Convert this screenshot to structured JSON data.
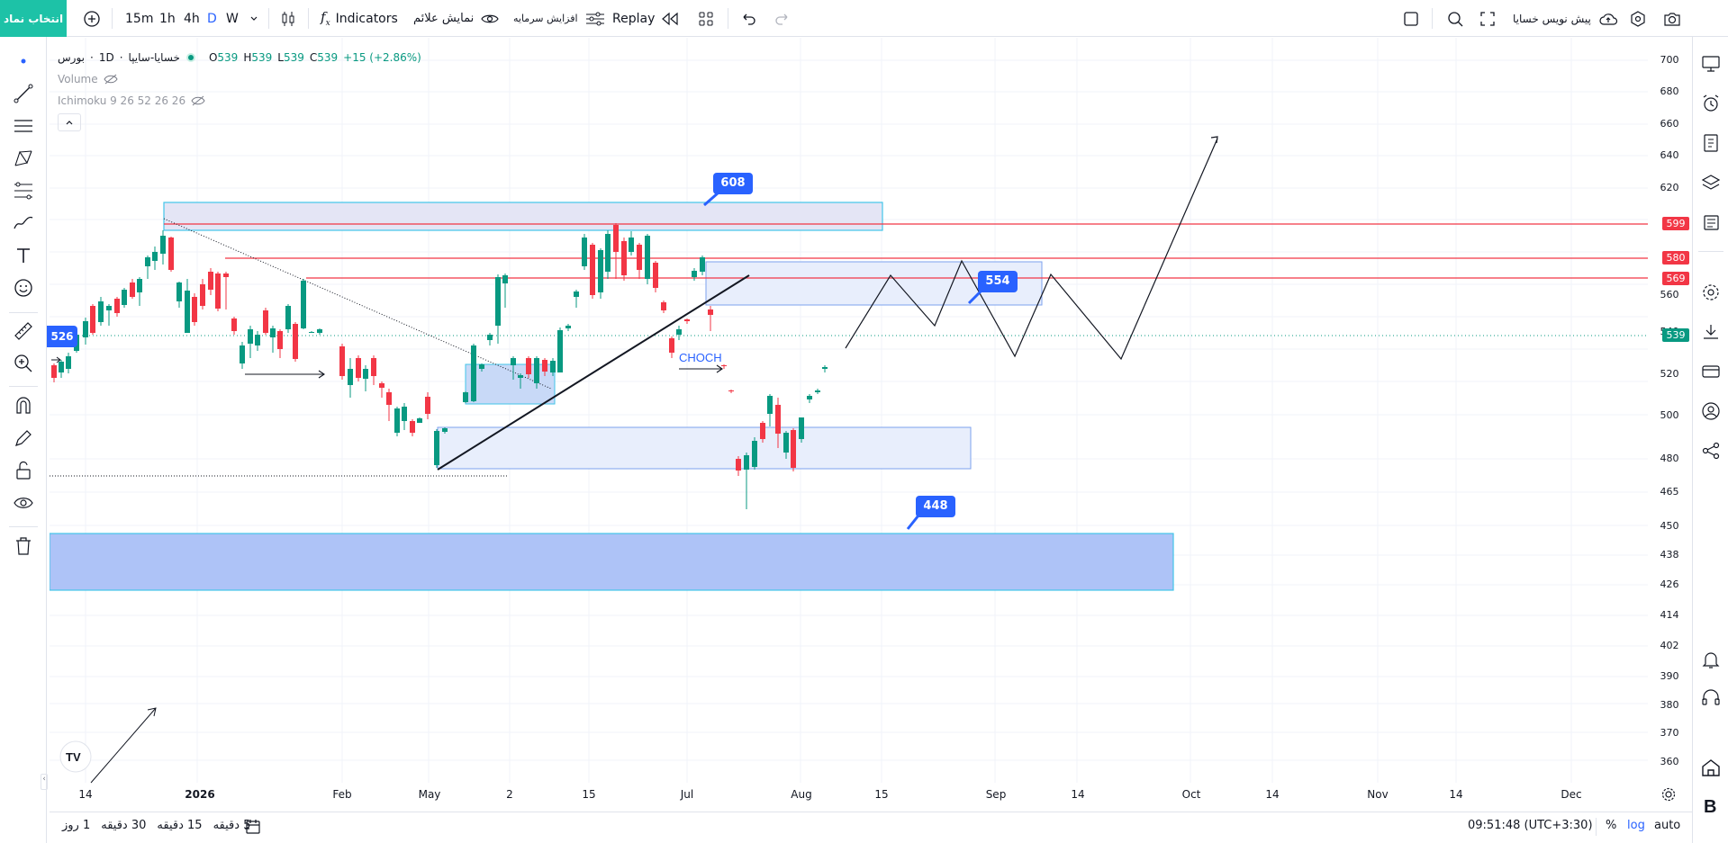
{
  "topbar": {
    "symbol_button": "انتخاب نماد",
    "intervals": [
      "15m",
      "1h",
      "4h",
      "D",
      "W"
    ],
    "active_interval": "D",
    "indicators_label": "Indicators",
    "show_signals_label": "نمایش علائم",
    "capital_increase_label": "افزایش سرمایه",
    "replay_label": "Replay",
    "pre_order_label": "پیش نویس خسایا"
  },
  "legend": {
    "exchange": "بورس",
    "symbol": "خسایا-سایپا",
    "interval": "1D",
    "open_label": "O",
    "open": "539",
    "high_label": "H",
    "high": "539",
    "low_label": "L",
    "low": "539",
    "close_label": "C",
    "close": "539",
    "change": "+15 (+2.86%)",
    "volume_label": "Volume",
    "ichimoku_label": "Ichimoku 9 26 52 26 26"
  },
  "price_axis": {
    "ticks": [
      "700",
      "680",
      "660",
      "640",
      "620",
      "560",
      "540",
      "520",
      "500",
      "480",
      "465",
      "450",
      "438",
      "426",
      "414",
      "402",
      "390",
      "380",
      "370",
      "360"
    ],
    "levels": [
      {
        "value": "599",
        "color": "#f23645"
      },
      {
        "value": "580",
        "color": "#f23645"
      },
      {
        "value": "569",
        "color": "#f23645"
      },
      {
        "value": "539",
        "color": "#089981"
      }
    ]
  },
  "time_axis": {
    "ticks": [
      "14",
      "2026",
      "Feb",
      "May",
      "2",
      "15",
      "Jul",
      "Aug",
      "15",
      "Sep",
      "14",
      "Oct",
      "14",
      "Nov",
      "14",
      "Dec"
    ]
  },
  "annotations": {
    "callout_608": "608",
    "callout_554": "554",
    "callout_448": "448",
    "left_price_label": "526",
    "choch_label": "CHOCH"
  },
  "bottombar": {
    "ranges": [
      "5 دقیقه",
      "15 دقیقه",
      "30 دقیقه",
      "1 روز"
    ],
    "clock": "09:51:48 (UTC+3:30)",
    "percent": "%",
    "log": "log",
    "auto": "auto"
  },
  "colors": {
    "up": "#089981",
    "down": "#f23645",
    "accent": "#2962ff",
    "brand": "#1dc2a7",
    "zone_fill": "#e8eefc",
    "zone_border": "#42a5f5"
  }
}
